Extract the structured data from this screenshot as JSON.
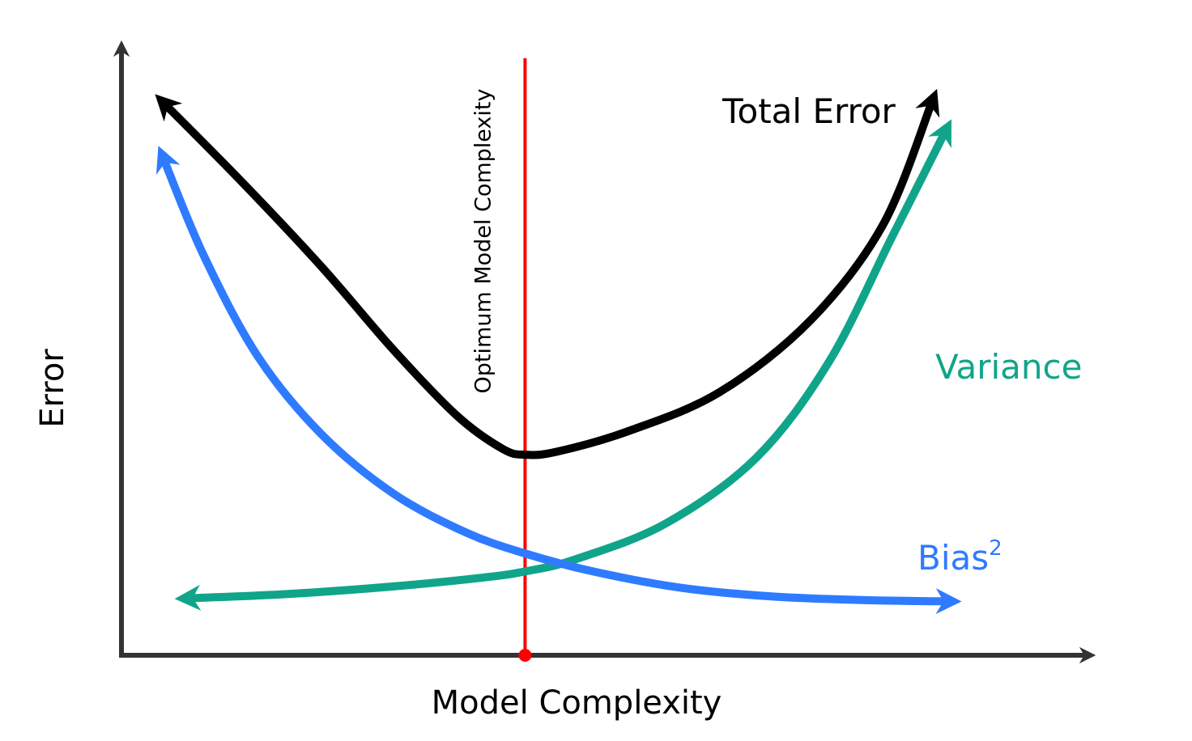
{
  "chart_data": {
    "type": "line",
    "title": "",
    "xlabel": "Model Complexity",
    "ylabel": "Error",
    "xlim": [
      0,
      10
    ],
    "ylim": [
      0,
      10
    ],
    "grid": false,
    "optimum": {
      "x": 4.45,
      "label": "Optimum Model Complexity",
      "color": "#ff0000"
    },
    "series": [
      {
        "name": "Total Error",
        "color": "#000000",
        "x": [
          0.45,
          1.3,
          2.2,
          3.0,
          3.7,
          4.2,
          4.45,
          4.8,
          5.6,
          6.6,
          7.6,
          8.4,
          8.95
        ],
        "y": [
          9.25,
          7.95,
          6.5,
          5.1,
          4.0,
          3.45,
          3.35,
          3.4,
          3.75,
          4.4,
          5.6,
          7.2,
          9.3
        ]
      },
      {
        "name": "Variance",
        "color": "#10a58a",
        "x": [
          0.7,
          1.8,
          3.0,
          4.0,
          4.45,
          5.0,
          6.0,
          7.0,
          7.8,
          8.5,
          9.1
        ],
        "y": [
          0.95,
          1.02,
          1.15,
          1.3,
          1.4,
          1.6,
          2.2,
          3.3,
          4.9,
          7.0,
          8.8
        ]
      },
      {
        "name": "Bias",
        "sup": "2",
        "color": "#2f7bff",
        "x": [
          0.45,
          0.9,
          1.5,
          2.2,
          3.0,
          3.8,
          4.45,
          5.2,
          6.2,
          7.2,
          8.2,
          9.15
        ],
        "y": [
          8.35,
          6.7,
          5.0,
          3.7,
          2.7,
          2.05,
          1.7,
          1.4,
          1.12,
          0.98,
          0.92,
          0.9
        ]
      }
    ]
  }
}
